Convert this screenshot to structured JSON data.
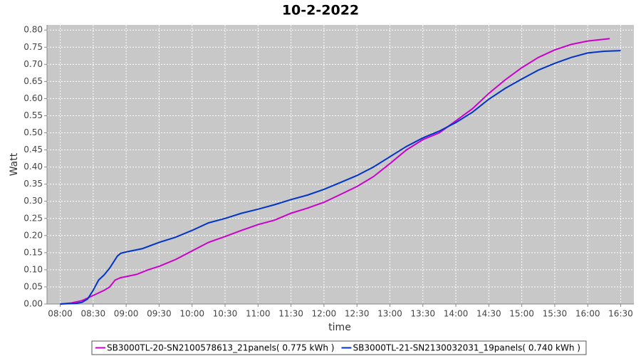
{
  "chart_data": {
    "type": "line",
    "title": "10-2-2022",
    "x_label": "time",
    "y_label": "Watt",
    "xlim": [
      "07:48",
      "16:42"
    ],
    "xticks": [
      "08:00",
      "08:30",
      "09:00",
      "09:30",
      "10:00",
      "10:30",
      "11:00",
      "11:30",
      "12:00",
      "12:30",
      "13:00",
      "13:30",
      "14:00",
      "14:30",
      "15:00",
      "15:30",
      "16:00",
      "16:30"
    ],
    "ylim": [
      0,
      0.815
    ],
    "yticks": [
      {
        "value": 0,
        "label": "0.00"
      },
      {
        "value": 0.05,
        "label": "0.05"
      },
      {
        "value": 0.1,
        "label": "0.10"
      },
      {
        "value": 0.15,
        "label": "0.15"
      },
      {
        "value": 0.2,
        "label": "0.20"
      },
      {
        "value": 0.25,
        "label": "0.25"
      },
      {
        "value": 0.3,
        "label": "0.30"
      },
      {
        "value": 0.35,
        "label": "0.35"
      },
      {
        "value": 0.4,
        "label": "0.40"
      },
      {
        "value": 0.45,
        "label": "0.45"
      },
      {
        "value": 0.5,
        "label": "0.50"
      },
      {
        "value": 0.55,
        "label": "0.55"
      },
      {
        "value": 0.6,
        "label": "0.60"
      },
      {
        "value": 0.65,
        "label": "0.65"
      },
      {
        "value": 0.7,
        "label": "0.70"
      },
      {
        "value": 0.75,
        "label": "0.75"
      },
      {
        "value": 0.8,
        "label": "0.80"
      }
    ],
    "grid": true,
    "legend": "bottom",
    "series": [
      {
        "name": "SB3000TL-20-SN2100578613_21panels( 0.775 kWh )",
        "color": "#cc00cc",
        "x": [
          "08:00",
          "08:10",
          "08:20",
          "08:30",
          "08:40",
          "08:45",
          "08:50",
          "08:55",
          "09:00",
          "09:10",
          "09:20",
          "09:30",
          "09:45",
          "10:00",
          "10:15",
          "10:30",
          "10:45",
          "11:00",
          "11:15",
          "11:30",
          "11:45",
          "12:00",
          "12:15",
          "12:30",
          "12:45",
          "13:00",
          "13:15",
          "13:30",
          "13:45",
          "14:00",
          "14:15",
          "14:30",
          "14:45",
          "15:00",
          "15:15",
          "15:30",
          "15:45",
          "16:00",
          "16:20"
        ],
        "values": [
          0,
          0.003,
          0.01,
          0.025,
          0.04,
          0.05,
          0.07,
          0.077,
          0.08,
          0.087,
          0.1,
          0.11,
          0.13,
          0.155,
          0.18,
          0.197,
          0.215,
          0.232,
          0.245,
          0.265,
          0.28,
          0.297,
          0.32,
          0.343,
          0.372,
          0.41,
          0.45,
          0.48,
          0.5,
          0.535,
          0.57,
          0.615,
          0.655,
          0.69,
          0.72,
          0.742,
          0.758,
          0.768,
          0.775
        ]
      },
      {
        "name": "SB3000TL-21-SN2130032031_19panels( 0.740 kWh )",
        "color": "#0033cc",
        "x": [
          "08:00",
          "08:15",
          "08:20",
          "08:25",
          "08:30",
          "08:35",
          "08:40",
          "08:45",
          "08:52",
          "08:55",
          "09:00",
          "09:15",
          "09:30",
          "09:45",
          "10:00",
          "10:15",
          "10:30",
          "10:45",
          "11:00",
          "11:15",
          "11:30",
          "11:45",
          "12:00",
          "12:15",
          "12:30",
          "12:45",
          "13:00",
          "13:15",
          "13:30",
          "13:45",
          "14:00",
          "14:15",
          "14:30",
          "14:45",
          "15:00",
          "15:15",
          "15:30",
          "15:45",
          "16:00",
          "16:15",
          "16:30"
        ],
        "values": [
          0,
          0.002,
          0.005,
          0.015,
          0.04,
          0.07,
          0.085,
          0.105,
          0.14,
          0.148,
          0.152,
          0.162,
          0.18,
          0.195,
          0.215,
          0.237,
          0.25,
          0.265,
          0.277,
          0.29,
          0.305,
          0.318,
          0.335,
          0.355,
          0.375,
          0.4,
          0.43,
          0.46,
          0.485,
          0.505,
          0.53,
          0.56,
          0.598,
          0.63,
          0.657,
          0.683,
          0.703,
          0.72,
          0.733,
          0.738,
          0.74
        ]
      }
    ]
  }
}
